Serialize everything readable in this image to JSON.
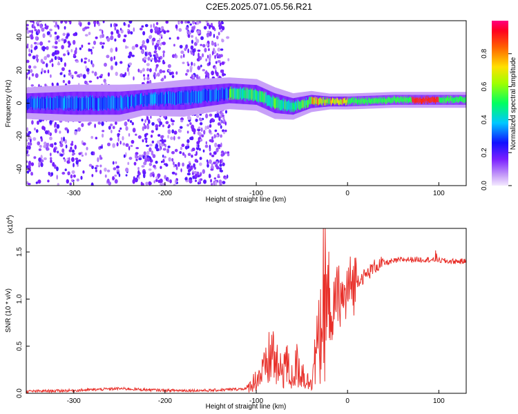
{
  "title": "C2E5.2025.071.05.56.R21",
  "colorbar": {
    "label": "Normalized spectral amplitude",
    "ticks": [
      "0.0",
      "0.2",
      "0.4",
      "0.6",
      "0.8"
    ]
  },
  "chart_data": [
    {
      "type": "heatmap",
      "xlabel": "Height of straight line (km)",
      "ylabel": "Frequency (Hz)",
      "xlim": [
        -352,
        130
      ],
      "ylim": [
        -50,
        50
      ],
      "xticks": [
        -300,
        -200,
        -100,
        0,
        100
      ],
      "yticks": [
        -40,
        -20,
        0,
        20,
        40
      ],
      "colorscale": "rainbow (purple=0, blue, cyan, green, yellow, red=1)",
      "zlim": [
        0,
        1
      ],
      "trace": [
        {
          "x": -350,
          "y": 0,
          "width": 6
        },
        {
          "x": -300,
          "y": 0,
          "width": 7
        },
        {
          "x": -250,
          "y": 0,
          "width": 7
        },
        {
          "x": -225,
          "y": 2,
          "width": 6
        },
        {
          "x": -180,
          "y": 3,
          "width": 7
        },
        {
          "x": -130,
          "y": 6,
          "width": 6
        },
        {
          "x": -100,
          "y": 5,
          "width": 6
        },
        {
          "x": -80,
          "y": 0,
          "width": 6
        },
        {
          "x": -60,
          "y": -2,
          "width": 5
        },
        {
          "x": -40,
          "y": 1,
          "width": 4
        },
        {
          "x": -20,
          "y": 1,
          "width": 3
        },
        {
          "x": 0,
          "y": 1,
          "width": 3
        },
        {
          "x": 50,
          "y": 2,
          "width": 3
        },
        {
          "x": 90,
          "y": 2,
          "width": 3
        },
        {
          "x": 130,
          "y": 2,
          "width": 3
        }
      ]
    },
    {
      "type": "line",
      "xlabel": "Height of straight line (km)",
      "ylabel": "SNR (10 * v/v)",
      "yscale_note": "(x10",
      "yscale_exp": "4",
      "xlim": [
        -352,
        130
      ],
      "ylim": [
        0,
        1.75
      ],
      "xticks": [
        -300,
        -200,
        -100,
        0,
        100
      ],
      "yticks": [
        "0.0",
        "0.5",
        "1.0",
        "1.5"
      ],
      "color": "#e8302a",
      "series": [
        {
          "x": [
            -352,
            -300,
            -250,
            -200,
            -150,
            -110,
            -100,
            -90,
            -82,
            -75,
            -68,
            -62,
            -55,
            -48,
            -42,
            -36,
            -30,
            -25,
            -22,
            -18,
            -15,
            -12,
            -8,
            -4,
            0,
            10,
            20,
            30,
            40,
            60,
            80,
            95,
            110,
            130
          ],
          "y": [
            0.02,
            0.03,
            0.05,
            0.03,
            0.03,
            0.05,
            0.15,
            0.25,
            0.45,
            0.2,
            0.35,
            0.15,
            0.3,
            0.2,
            0.1,
            0.35,
            0.6,
            1.1,
            0.8,
            0.9,
            0.85,
            1.0,
            1.05,
            0.95,
            1.1,
            1.2,
            1.25,
            1.35,
            1.38,
            1.42,
            1.42,
            1.42,
            1.4,
            1.4
          ]
        }
      ]
    }
  ]
}
